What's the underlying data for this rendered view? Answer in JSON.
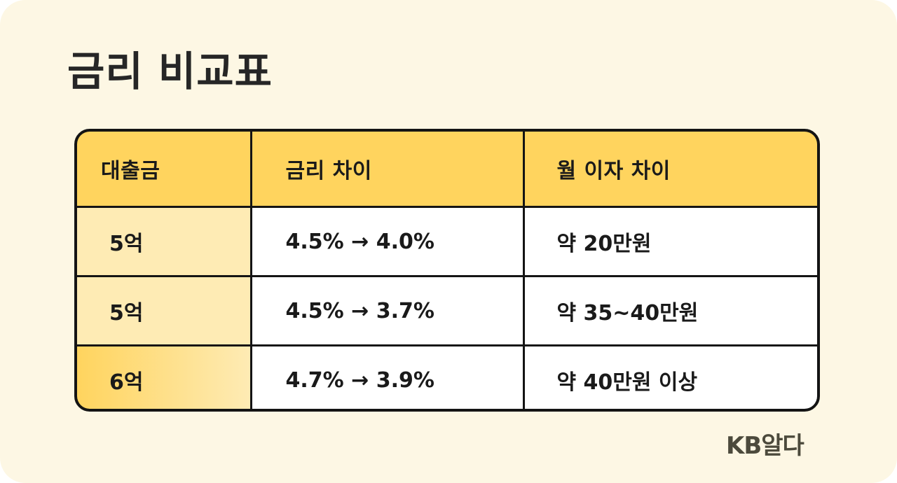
{
  "title": "금리 비교표",
  "table": {
    "headers": [
      "대출금",
      "금리 차이",
      "월 이자 차이"
    ],
    "rows": [
      [
        "5억",
        "4.5% → 4.0%",
        "약 20만원"
      ],
      [
        "5억",
        "4.5% → 3.7%",
        "약 35~40만원"
      ],
      [
        "6억",
        "4.7% → 3.9%",
        "약 40만원 이상"
      ]
    ]
  },
  "brand": "KB알다",
  "colors": {
    "background": "#fdf7e4",
    "header": "#ffd45e",
    "first_column": "#feebb4",
    "border": "#141414",
    "title_text": "#262626",
    "brand_text": "#4c4a3c"
  }
}
